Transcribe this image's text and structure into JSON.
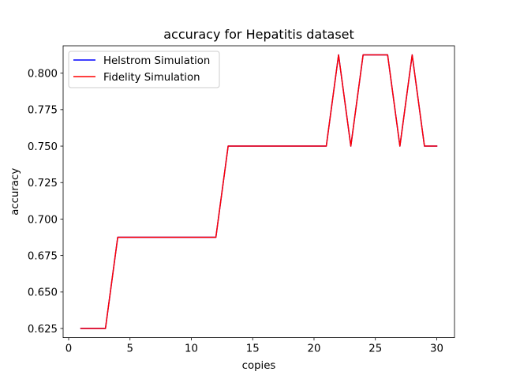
{
  "chart_data": {
    "type": "line",
    "title": "accuracy for Hepatitis dataset",
    "xlabel": "copies",
    "ylabel": "accuracy",
    "xlim": [
      -0.45,
      31.45
    ],
    "ylim": [
      0.61875,
      0.81875
    ],
    "xticks": [
      0,
      5,
      10,
      15,
      20,
      25,
      30
    ],
    "yticks": [
      0.625,
      0.65,
      0.675,
      0.7,
      0.725,
      0.75,
      0.775,
      0.8
    ],
    "ytick_labels": [
      "0.625",
      "0.650",
      "0.675",
      "0.700",
      "0.725",
      "0.750",
      "0.775",
      "0.800"
    ],
    "grid": false,
    "legend_position": "upper-left",
    "x": [
      1,
      2,
      3,
      4,
      5,
      6,
      7,
      8,
      9,
      10,
      11,
      12,
      13,
      14,
      15,
      16,
      17,
      18,
      19,
      20,
      21,
      22,
      23,
      24,
      25,
      26,
      27,
      28,
      29,
      30
    ],
    "series": [
      {
        "name": "Helstrom Simulation",
        "color": "#0000ff",
        "values": [
          0.625,
          0.625,
          0.625,
          0.6875,
          0.6875,
          0.6875,
          0.6875,
          0.6875,
          0.6875,
          0.6875,
          0.6875,
          0.6875,
          0.75,
          0.75,
          0.75,
          0.75,
          0.75,
          0.75,
          0.75,
          0.75,
          0.75,
          0.8125,
          0.75,
          0.8125,
          0.8125,
          0.8125,
          0.75,
          0.8125,
          0.75,
          0.75
        ]
      },
      {
        "name": "Fidelity Simulation",
        "color": "#ff0000",
        "values": [
          0.625,
          0.625,
          0.625,
          0.6875,
          0.6875,
          0.6875,
          0.6875,
          0.6875,
          0.6875,
          0.6875,
          0.6875,
          0.6875,
          0.75,
          0.75,
          0.75,
          0.75,
          0.75,
          0.75,
          0.75,
          0.75,
          0.75,
          0.8125,
          0.75,
          0.8125,
          0.8125,
          0.8125,
          0.75,
          0.8125,
          0.75,
          0.75
        ]
      }
    ]
  }
}
